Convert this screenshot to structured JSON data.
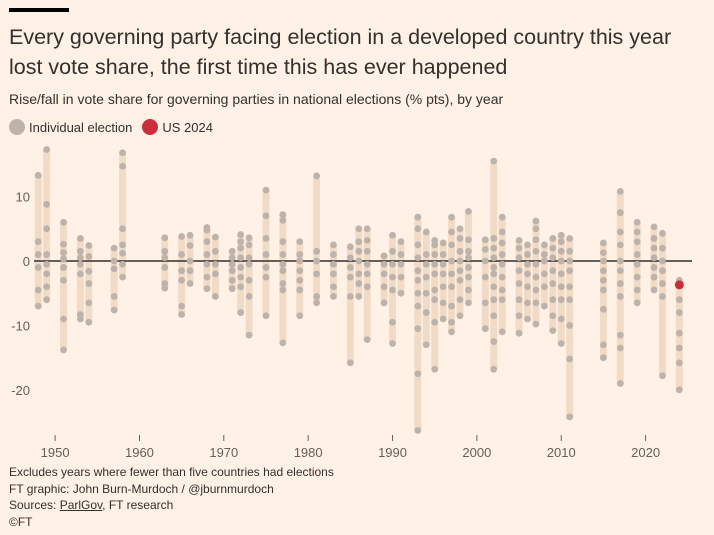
{
  "title": "Every governing party facing election in a developed country this year lost vote share, the first time this has ever happened",
  "subtitle": "Rise/fall in vote share for governing parties in national elections (% pts), by year",
  "legend": [
    {
      "label": "Individual election",
      "color": "#bdb3ab"
    },
    {
      "label": "US 2024",
      "color": "#cc2d3b"
    }
  ],
  "colors": {
    "background": "#fff1e5",
    "range_bar": "#f2dbc6",
    "dot": "#bdb3ab",
    "highlight": "#cc2d3b",
    "zero_line": "#33302e"
  },
  "footer": {
    "note": "Excludes years where fewer than five countries had elections",
    "graphic": "FT graphic: John Burn-Murdoch / @jburnmurdoch",
    "sources_prefix": "Sources: ",
    "sources_link": "ParlGov",
    "sources_suffix": ", FT research",
    "copyright": "©FT"
  },
  "chart_data": {
    "type": "scatter",
    "ylim": [
      -27,
      18
    ],
    "xlim": [
      1947.5,
      2025.5
    ],
    "yticks": [
      10,
      0,
      -10,
      -20
    ],
    "ytick_labels": [
      "10",
      "0",
      "-10",
      "-20"
    ],
    "xticks": [
      1950,
      1960,
      1970,
      1980,
      1990,
      2000,
      2010,
      2020
    ],
    "xtick_labels": [
      "1950",
      "1960",
      "1970",
      "1980",
      "1990",
      "2000",
      "2010",
      "2020"
    ],
    "grid": false,
    "series": [
      {
        "name": "Individual election",
        "points": [
          {
            "year": 1948,
            "values": [
              13.3,
              3,
              1,
              -1,
              -4.5,
              -7
            ]
          },
          {
            "year": 1949,
            "values": [
              17.3,
              8.8,
              5,
              1,
              -0.5,
              -2,
              -4,
              -6
            ]
          },
          {
            "year": 1951,
            "values": [
              6,
              2.6,
              1.3,
              0.3,
              -1,
              -3,
              -9,
              -13.8
            ]
          },
          {
            "year": 1953,
            "values": [
              3.5,
              1.5,
              0.5,
              -0.5,
              -2,
              -8.3,
              -9
            ]
          },
          {
            "year": 1954,
            "values": [
              2.4,
              0.7,
              -1.6,
              -3.5,
              -6.5,
              -9.5
            ]
          },
          {
            "year": 1957,
            "values": [
              2,
              0,
              -1.2,
              -5.5,
              -7.6
            ]
          },
          {
            "year": 1958,
            "values": [
              16.8,
              14.7,
              5,
              2.5,
              1.2,
              -0.5,
              -2.5
            ]
          },
          {
            "year": 1963,
            "values": [
              3.6,
              1.5,
              0.5,
              -1,
              -3.5,
              -4.2
            ]
          },
          {
            "year": 1965,
            "values": [
              3.8,
              1,
              -1.5,
              -3,
              -7,
              -8.3
            ]
          },
          {
            "year": 1966,
            "values": [
              4,
              2.4,
              0,
              -1.5,
              -3.5
            ]
          },
          {
            "year": 1968,
            "values": [
              5.2,
              4.8,
              3,
              1,
              -0.5,
              -2.5,
              -4.3
            ]
          },
          {
            "year": 1969,
            "values": [
              3.7,
              1.5,
              -0.5,
              -2,
              -5.5
            ]
          },
          {
            "year": 1971,
            "values": [
              1.5,
              0.5,
              -0.5,
              -1.5,
              -3,
              -4.3
            ]
          },
          {
            "year": 1972,
            "values": [
              4.1,
              3,
              2,
              0.5,
              -1,
              -2.5,
              -4,
              -8
            ]
          },
          {
            "year": 1973,
            "values": [
              3.6,
              2.5,
              0.5,
              -0.5,
              -3,
              -5.5,
              -11.5
            ]
          },
          {
            "year": 1975,
            "values": [
              11,
              7,
              3.5,
              1,
              -1,
              -2.5,
              -8.5
            ]
          },
          {
            "year": 1977,
            "values": [
              7.2,
              6.3,
              3,
              1,
              -0.5,
              -1.5,
              -3.5,
              -4.5,
              -12.7
            ]
          },
          {
            "year": 1979,
            "values": [
              3,
              1,
              0,
              -1.5,
              -3,
              -4.5,
              -8.5
            ]
          },
          {
            "year": 1981,
            "values": [
              13.2,
              1.5,
              0,
              -2,
              -5.5,
              -6.5
            ]
          },
          {
            "year": 1983,
            "values": [
              2.5,
              1,
              -0.5,
              -2,
              -4,
              -5.5
            ]
          },
          {
            "year": 1985,
            "values": [
              2.2,
              0.5,
              -1,
              -2.5,
              -5.5,
              -15.8
            ]
          },
          {
            "year": 1986,
            "values": [
              5,
              3,
              1.5,
              0,
              -2,
              -3.5,
              -5.5
            ]
          },
          {
            "year": 1987,
            "values": [
              5,
              3.2,
              1.5,
              -0.5,
              -2,
              -4,
              -12.2
            ]
          },
          {
            "year": 1989,
            "values": [
              0.8,
              -0.5,
              -2,
              -4,
              -6.5
            ]
          },
          {
            "year": 1990,
            "values": [
              4,
              1.5,
              -0.5,
              -2.5,
              -4.5,
              -9.5,
              -12.8
            ]
          },
          {
            "year": 1991,
            "values": [
              3,
              1,
              -0.5,
              -2.5,
              -5
            ]
          },
          {
            "year": 1993,
            "values": [
              6.8,
              5,
              2.5,
              0.5,
              -1.5,
              -3,
              -5,
              -7,
              -10.5,
              -17.5,
              -26.3
            ]
          },
          {
            "year": 1994,
            "values": [
              4.5,
              1,
              -0.5,
              -2.5,
              -5,
              -8,
              -13
            ]
          },
          {
            "year": 1995,
            "values": [
              3.2,
              2.5,
              1,
              -0.5,
              -2,
              -4.5,
              -6,
              -9.5,
              -16.8
            ]
          },
          {
            "year": 1996,
            "values": [
              2.8,
              1,
              -0.5,
              -2,
              -4,
              -6.5,
              -9
            ]
          },
          {
            "year": 1997,
            "values": [
              6.8,
              4.5,
              2.5,
              0,
              -2,
              -4,
              -7,
              -9.5,
              -11
            ]
          },
          {
            "year": 1998,
            "values": [
              5,
              3.5,
              1.5,
              0,
              -1.5,
              -3,
              -6,
              -8.5
            ]
          },
          {
            "year": 1999,
            "values": [
              7.7,
              3.3,
              1.5,
              0.5,
              -1,
              -2.5,
              -4.5,
              -6.5
            ]
          },
          {
            "year": 2001,
            "values": [
              3.3,
              1.8,
              0,
              -2.5,
              -6.5,
              -10.5
            ]
          },
          {
            "year": 2002,
            "values": [
              15.5,
              3.5,
              2,
              0.5,
              -1,
              -2,
              -4,
              -6,
              -8.5,
              -12.5,
              -16.8
            ]
          },
          {
            "year": 2003,
            "values": [
              6.8,
              4.5,
              2.8,
              1,
              -0.5,
              -2.5,
              -4.5,
              -6,
              -11
            ]
          },
          {
            "year": 2005,
            "values": [
              3.2,
              2,
              0.5,
              -1.5,
              -3.5,
              -6,
              -8.5,
              -11.2
            ]
          },
          {
            "year": 2006,
            "values": [
              2.5,
              1,
              -0.5,
              -2,
              -4,
              -6.5,
              -9
            ]
          },
          {
            "year": 2007,
            "values": [
              6.2,
              5,
              3.3,
              1.5,
              -0.5,
              -2.5,
              -4.5,
              -6.5,
              -9.8
            ]
          },
          {
            "year": 2008,
            "values": [
              2.5,
              1,
              0,
              -2,
              -4,
              -7
            ]
          },
          {
            "year": 2009,
            "values": [
              3.5,
              2,
              0.5,
              -1.5,
              -3.5,
              -6,
              -8.5,
              -10.8
            ]
          },
          {
            "year": 2010,
            "values": [
              4,
              3,
              1.5,
              0,
              -2,
              -4,
              -6,
              -9,
              -12.8
            ]
          },
          {
            "year": 2011,
            "values": [
              3.5,
              1.5,
              0,
              -1.5,
              -4,
              -6,
              -10,
              -15.2,
              -24.2
            ]
          },
          {
            "year": 2015,
            "values": [
              2.8,
              1.3,
              0,
              -1.5,
              -3,
              -4.5,
              -7.5,
              -13,
              -15
            ]
          },
          {
            "year": 2017,
            "values": [
              10.8,
              7.5,
              4.5,
              2.5,
              0,
              -1.5,
              -3.5,
              -5.5,
              -11.5,
              -13.5,
              -19
            ]
          },
          {
            "year": 2019,
            "values": [
              6,
              4.5,
              3,
              1,
              -0.5,
              -2.5,
              -4.5,
              -6.5
            ]
          },
          {
            "year": 2021,
            "values": [
              5.3,
              3.5,
              2,
              0.5,
              -1,
              -2.5,
              -4.5
            ]
          },
          {
            "year": 2022,
            "values": [
              4.3,
              2,
              0,
              -1.5,
              -3.5,
              -5.5,
              -17.8
            ]
          },
          {
            "year": 2024,
            "values": [
              -3,
              -6,
              -8,
              -11.2,
              -13.5,
              -15.8,
              -20
            ]
          }
        ]
      },
      {
        "name": "US 2024",
        "points": [
          {
            "year": 2024,
            "values": [
              -3.7
            ]
          }
        ]
      }
    ]
  }
}
